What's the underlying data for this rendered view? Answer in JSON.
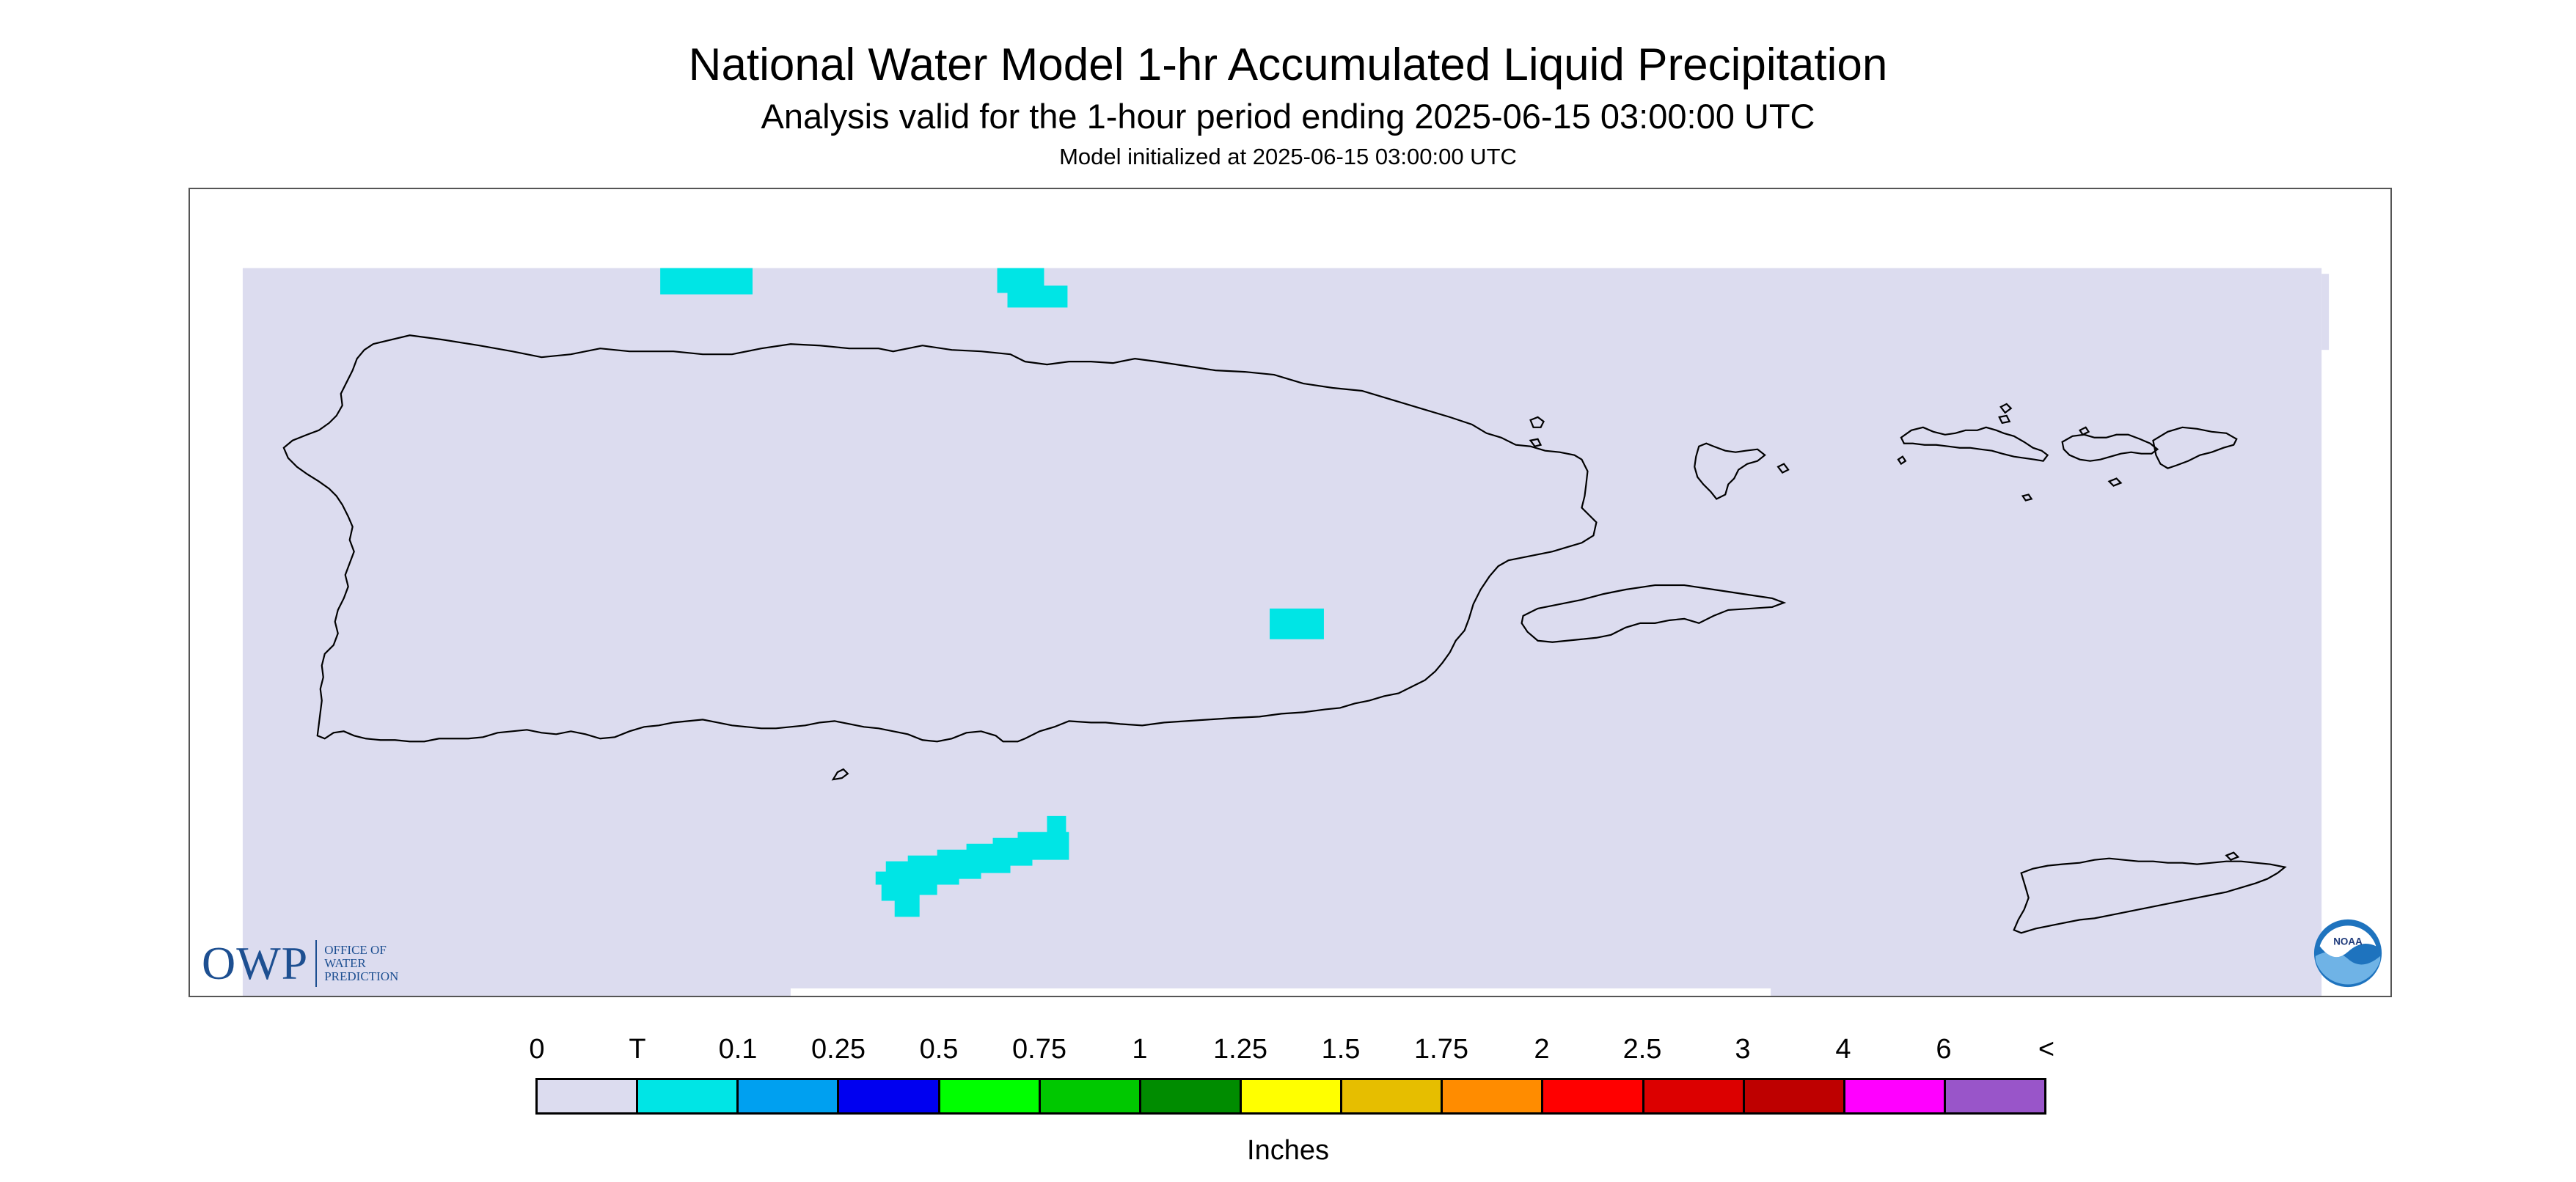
{
  "header": {
    "title": "National Water Model 1-hr Accumulated Liquid Precipitation",
    "subtitle": "Analysis valid for the 1-hour period ending 2025-06-15 03:00:00 UTC",
    "init": "Model initialized at 2025-06-15 03:00:00 UTC"
  },
  "map": {
    "background_color": "#dcdcef",
    "coastline_color": "#000000",
    "precip_trace_color": "#00e5e5",
    "regions": [
      "puerto-rico",
      "vieques",
      "culebra",
      "st-thomas-st-john",
      "st-croix",
      "caja-de-muertos"
    ]
  },
  "logos": {
    "owp": {
      "abbr": "OWP",
      "line1": "OFFICE OF",
      "line2": "WATER",
      "line3": "PREDICTION"
    },
    "noaa": {
      "text": "NOAA"
    }
  },
  "legend": {
    "labels": [
      "0",
      "T",
      "0.1",
      "0.25",
      "0.5",
      "0.75",
      "1",
      "1.25",
      "1.5",
      "1.75",
      "2",
      "2.5",
      "3",
      "4",
      "6",
      "<"
    ],
    "colors": [
      "#dcdcef",
      "#00e5e5",
      "#00a0f0",
      "#0000f0",
      "#00ff00",
      "#00c800",
      "#008c00",
      "#ffff00",
      "#e6be00",
      "#ff8c00",
      "#ff0000",
      "#dc0000",
      "#be0000",
      "#ff00ff",
      "#9955c9"
    ],
    "unit": "Inches"
  }
}
